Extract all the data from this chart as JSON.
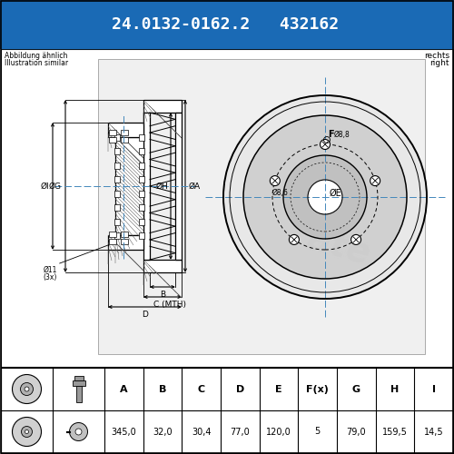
{
  "part_number": "24.0132-0162.2",
  "alt_number": "432162",
  "note_de": "Abbildung ähnlich",
  "note_en": "Illustration similar",
  "side_de": "rechts",
  "side_en": "right",
  "header_bg": "#1a6ab5",
  "header_text": "#ffffff",
  "bg_color": "#ffffff",
  "table_header_row": [
    "A",
    "B",
    "C",
    "D",
    "E",
    "F(x)",
    "G",
    "H",
    "I"
  ],
  "table_values": [
    "345,0",
    "32,0",
    "30,4",
    "77,0",
    "120,0",
    "5",
    "79,0",
    "159,5",
    "14,5"
  ]
}
